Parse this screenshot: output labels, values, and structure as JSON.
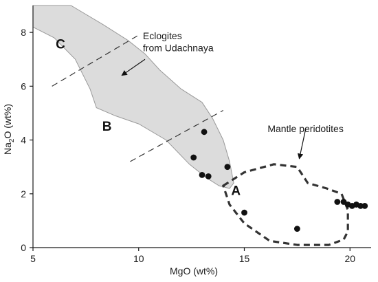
{
  "chart_data": {
    "type": "scatter",
    "xlabel": "MgO (wt%)",
    "ylabel_main": "Na",
    "ylabel_sub": "2",
    "ylabel_rest": "O (wt%)",
    "xlim": [
      5,
      21
    ],
    "ylim": [
      0,
      9
    ],
    "xticks": [
      5,
      10,
      15,
      20
    ],
    "yticks": [
      0,
      2,
      4,
      6,
      8
    ],
    "grid": false,
    "colors": {
      "axis": "#1a1a1a",
      "points": "#111111",
      "field_fill": "#dcdcdc",
      "field_stroke": "#9a9a9a",
      "peridotite": "#333333",
      "dividers": "#333333"
    },
    "points": [
      {
        "x": 13.1,
        "y": 4.3
      },
      {
        "x": 12.6,
        "y": 3.35
      },
      {
        "x": 13.0,
        "y": 2.7
      },
      {
        "x": 13.3,
        "y": 2.65
      },
      {
        "x": 14.2,
        "y": 3.0
      },
      {
        "x": 15.0,
        "y": 1.3
      },
      {
        "x": 17.5,
        "y": 0.7
      },
      {
        "x": 19.4,
        "y": 1.7
      },
      {
        "x": 19.7,
        "y": 1.7
      },
      {
        "x": 19.9,
        "y": 1.6
      },
      {
        "x": 20.1,
        "y": 1.55
      },
      {
        "x": 20.3,
        "y": 1.6
      },
      {
        "x": 20.5,
        "y": 1.55
      },
      {
        "x": 20.7,
        "y": 1.55
      }
    ],
    "eclogite_field": [
      [
        5.0,
        9.0
      ],
      [
        6.8,
        9.0
      ],
      [
        8.3,
        8.3
      ],
      [
        9.5,
        7.7
      ],
      [
        10.3,
        7.2
      ],
      [
        11.0,
        6.6
      ],
      [
        12.0,
        5.9
      ],
      [
        13.0,
        5.4
      ],
      [
        13.5,
        4.8
      ],
      [
        14.0,
        4.0
      ],
      [
        14.3,
        3.2
      ],
      [
        14.5,
        2.4
      ],
      [
        14.3,
        2.2
      ],
      [
        13.8,
        2.3
      ],
      [
        13.2,
        2.6
      ],
      [
        12.4,
        3.1
      ],
      [
        11.3,
        4.0
      ],
      [
        10.0,
        4.6
      ],
      [
        8.9,
        4.9
      ],
      [
        8.0,
        5.2
      ],
      [
        7.7,
        5.9
      ],
      [
        7.0,
        7.0
      ],
      [
        6.0,
        7.8
      ],
      [
        5.0,
        8.2
      ]
    ],
    "mantle_peridotite_field": [
      [
        14.0,
        2.3
      ],
      [
        15.0,
        2.8
      ],
      [
        16.4,
        3.1
      ],
      [
        17.5,
        3.0
      ],
      [
        18.0,
        2.4
      ],
      [
        18.9,
        2.2
      ],
      [
        19.6,
        2.0
      ],
      [
        19.9,
        1.4
      ],
      [
        19.9,
        0.6
      ],
      [
        19.7,
        0.3
      ],
      [
        19.0,
        0.1
      ],
      [
        17.5,
        0.1
      ],
      [
        16.2,
        0.25
      ],
      [
        15.0,
        0.9
      ],
      [
        14.3,
        1.6
      ]
    ],
    "divider_lines": [
      [
        [
          5.9,
          6.0
        ],
        [
          10.0,
          7.9
        ]
      ],
      [
        [
          9.6,
          3.2
        ],
        [
          14.0,
          5.1
        ]
      ]
    ],
    "annotations": {
      "eclogites_line1": "Eclogites",
      "eclogites_line2": "from Udachnaya",
      "mantle": "Mantle peridotites",
      "zone_a": "A",
      "zone_b": "B",
      "zone_c": "C"
    },
    "arrows": {
      "eclogites": {
        "from": [
          10.3,
          7.0
        ],
        "to": [
          9.2,
          6.4
        ]
      },
      "mantle": {
        "from": [
          17.9,
          4.4
        ],
        "to": [
          17.6,
          3.3
        ]
      }
    },
    "label_positions": {
      "eclogites_line1": [
        10.2,
        7.75
      ],
      "eclogites_line2": [
        10.2,
        7.3
      ],
      "mantle": [
        16.1,
        4.3
      ],
      "zone_a": [
        14.6,
        1.95
      ],
      "zone_b": [
        8.5,
        4.35
      ],
      "zone_c": [
        6.3,
        7.4
      ]
    }
  }
}
